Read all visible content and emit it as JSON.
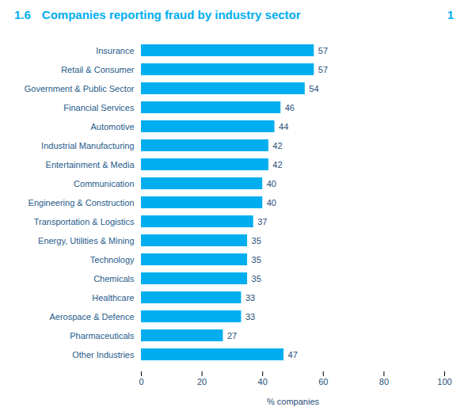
{
  "chart_data": {
    "type": "bar",
    "orientation": "horizontal",
    "title": "Companies reporting fraud by industry sector",
    "annotations": [
      "1.6",
      "1"
    ],
    "categories": [
      "Insurance",
      "Retail & Consumer",
      "Government & Public Sector",
      "Financial Services",
      "Automotive",
      "Industrial Manufacturing",
      "Entertainment & Media",
      "Communication",
      "Engineering & Construction",
      "Transportation & Logistics",
      "Energy, Utilities & Mining",
      "Technology",
      "Chemicals",
      "Healthcare",
      "Aerospace & Defence",
      "Pharmaceuticals",
      "Other Industries"
    ],
    "values": [
      57,
      57,
      54,
      46,
      44,
      42,
      42,
      40,
      40,
      37,
      35,
      35,
      35,
      33,
      33,
      27,
      47
    ],
    "color": "#00AEEF",
    "xlabel": "% companies",
    "xlim": [
      0,
      100
    ],
    "xticks": [
      0,
      20,
      40,
      60,
      80,
      100
    ],
    "data_labels": true,
    "grid": false
  }
}
